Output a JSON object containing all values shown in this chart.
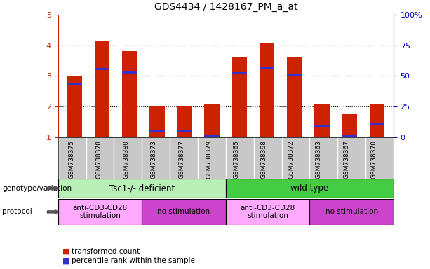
{
  "title": "GDS4434 / 1428167_PM_a_at",
  "samples": [
    "GSM738375",
    "GSM738378",
    "GSM738380",
    "GSM738373",
    "GSM738377",
    "GSM738379",
    "GSM738365",
    "GSM738368",
    "GSM738372",
    "GSM738363",
    "GSM738367",
    "GSM738370"
  ],
  "bar_heights": [
    3.0,
    4.15,
    3.82,
    2.02,
    2.0,
    2.1,
    3.62,
    4.07,
    3.6,
    2.1,
    1.75,
    2.1
  ],
  "blue_positions": [
    2.73,
    3.22,
    3.12,
    1.2,
    1.2,
    1.05,
    3.1,
    3.25,
    3.05,
    1.38,
    1.02,
    1.42
  ],
  "ylim": [
    1,
    5
  ],
  "yticks_left": [
    1,
    2,
    3,
    4,
    5
  ],
  "yticks_right": [
    0,
    25,
    50,
    75,
    100
  ],
  "bar_color": "#cc2200",
  "blue_color": "#3333cc",
  "plot_bg_color": "#ffffff",
  "grid_color": "#000000",
  "tick_color_left": "#cc2200",
  "tick_color_right": "#0000cc",
  "sample_bg_color": "#c8c8c8",
  "sample_sep_color": "#ffffff",
  "genotype_groups": [
    {
      "label": "Tsc1-/- deficient",
      "start": 0,
      "end": 6,
      "color": "#b8f0b8"
    },
    {
      "label": "wild type",
      "start": 6,
      "end": 12,
      "color": "#44cc44"
    }
  ],
  "protocol_groups": [
    {
      "label": "anti-CD3-CD28\nstimulation",
      "start": 0,
      "end": 3,
      "color": "#ffaaff"
    },
    {
      "label": "no stimulation",
      "start": 3,
      "end": 6,
      "color": "#cc44cc"
    },
    {
      "label": "anti-CD3-CD28\nstimulation",
      "start": 6,
      "end": 9,
      "color": "#ffaaff"
    },
    {
      "label": "no stimulation",
      "start": 9,
      "end": 12,
      "color": "#cc44cc"
    }
  ],
  "legend_items": [
    {
      "label": "transformed count",
      "color": "#cc2200"
    },
    {
      "label": "percentile rank within the sample",
      "color": "#3333cc"
    }
  ],
  "bar_width": 0.55
}
